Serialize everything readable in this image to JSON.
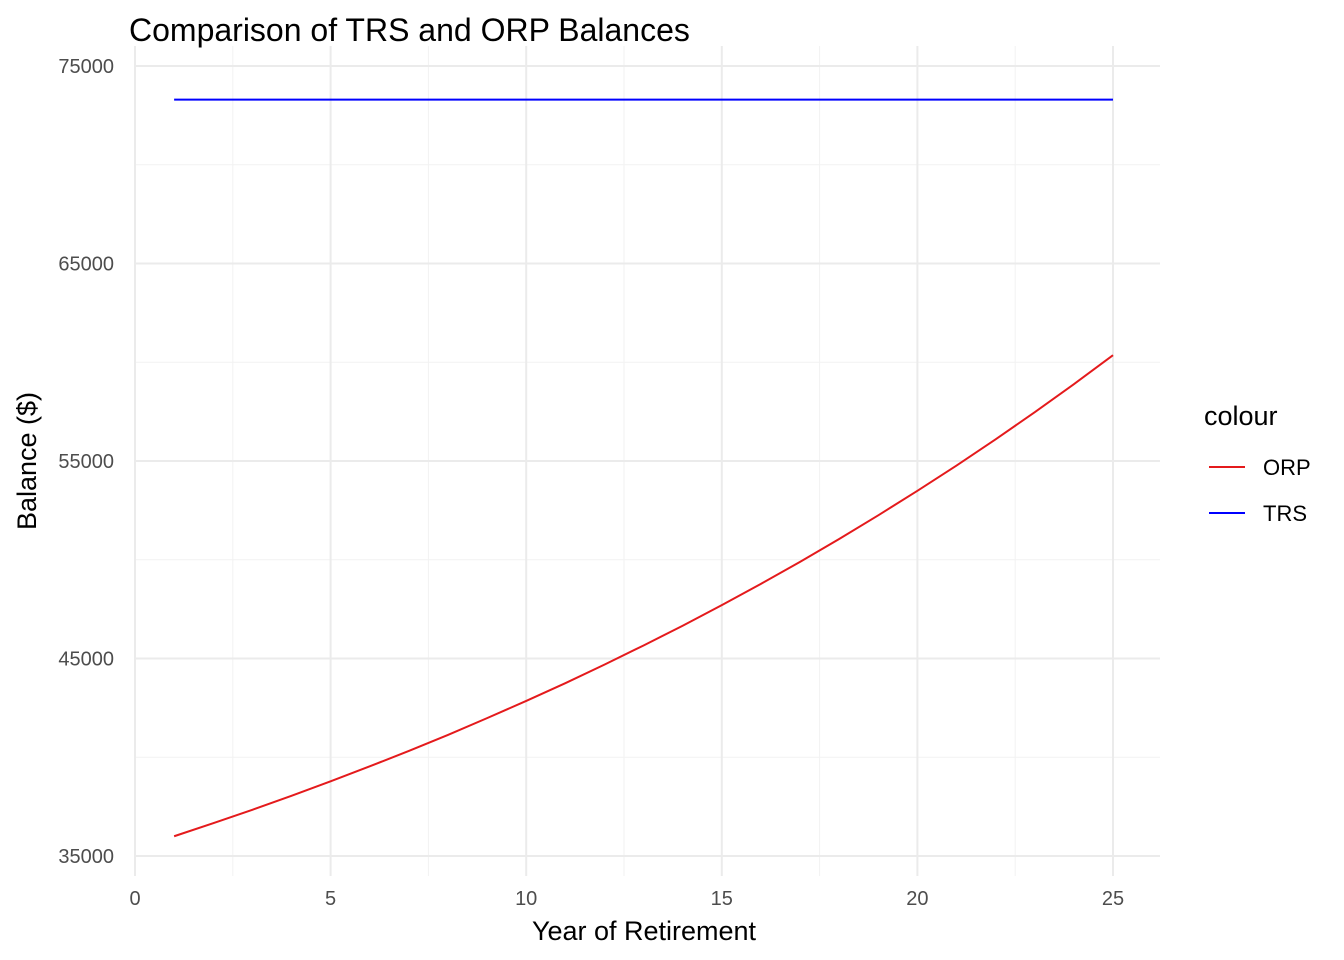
{
  "chart_data": {
    "type": "line",
    "title": "Comparison of TRS and ORP Balances",
    "xlabel": "Year of Retirement",
    "ylabel": "Balance ($)",
    "xlim": [
      0,
      26
    ],
    "ylim": [
      35000,
      75000
    ],
    "x_ticks": [
      0,
      5,
      10,
      15,
      20,
      25
    ],
    "y_ticks": [
      35000,
      45000,
      55000,
      65000,
      75000
    ],
    "x_tick_labels": [
      "0",
      "5",
      "10",
      "15",
      "20",
      "25"
    ],
    "y_tick_labels": [
      "35000",
      "45000",
      "55000",
      "65000",
      "75000"
    ],
    "grid": true,
    "legend": {
      "title": "colour",
      "placement": "right",
      "entries": [
        {
          "label": "ORP",
          "color": "#e41a1c"
        },
        {
          "label": "TRS",
          "color": "#0000ff"
        }
      ]
    },
    "series": [
      {
        "name": "ORP",
        "color": "#e41a1c",
        "x": [
          1,
          2,
          3,
          4,
          5,
          6,
          7,
          8,
          9,
          10,
          11,
          12,
          13,
          14,
          15,
          16,
          17,
          18,
          19,
          20,
          21,
          22,
          23,
          24,
          25
        ],
        "values": [
          36000,
          36660,
          37340,
          38050,
          38780,
          39540,
          40320,
          41130,
          41980,
          42850,
          43750,
          44690,
          45660,
          46660,
          47700,
          48780,
          49890,
          51050,
          52250,
          53490,
          54770,
          56100,
          57470,
          58890,
          60360
        ]
      },
      {
        "name": "TRS",
        "color": "#0000ff",
        "x": [
          1,
          25
        ],
        "values": [
          73300,
          73300
        ]
      }
    ]
  }
}
